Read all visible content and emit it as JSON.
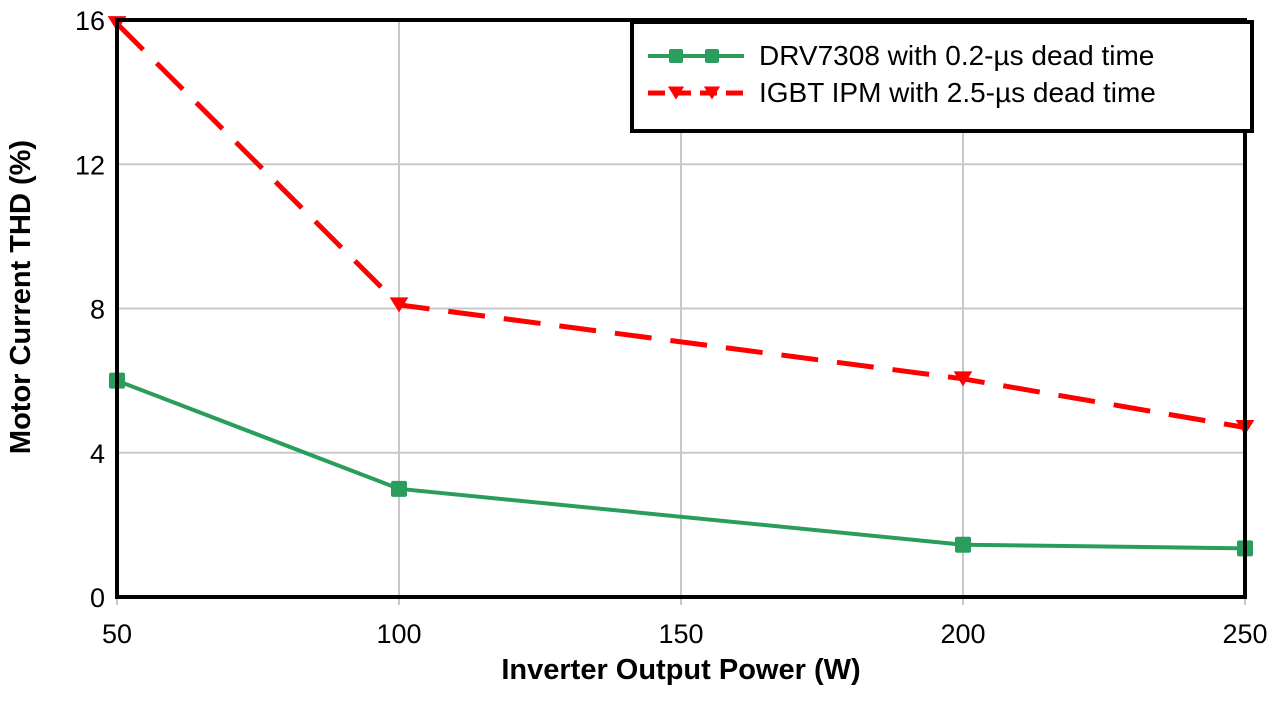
{
  "figure": {
    "background_color": "#ffffff",
    "grid_color": "#c8c8c8",
    "axis_color": "#000000",
    "text_color": "#000000"
  },
  "chart_data": {
    "type": "line",
    "title": "",
    "xlabel": "Inverter Output Power (W)",
    "ylabel": "Motor Current THD (%)",
    "xlim": [
      50,
      250
    ],
    "ylim": [
      0,
      16
    ],
    "x_ticks": [
      50,
      100,
      150,
      200,
      250
    ],
    "y_ticks": [
      0,
      4,
      8,
      12,
      16
    ],
    "grid": true,
    "legend_position": "top-right",
    "series": [
      {
        "name": "DRV7308 with 0.2-µs dead time",
        "x": [
          50,
          100,
          200,
          250
        ],
        "y": [
          6.0,
          3.0,
          1.45,
          1.35
        ],
        "color": "#2a9d5c",
        "marker": "square",
        "line_style": "solid"
      },
      {
        "name": "IGBT IPM with 2.5-µs dead time",
        "x": [
          50,
          100,
          200,
          250
        ],
        "y": [
          15.9,
          8.1,
          6.05,
          4.7
        ],
        "color": "#ff0000",
        "marker": "triangle-down",
        "line_style": "dashed"
      }
    ]
  }
}
